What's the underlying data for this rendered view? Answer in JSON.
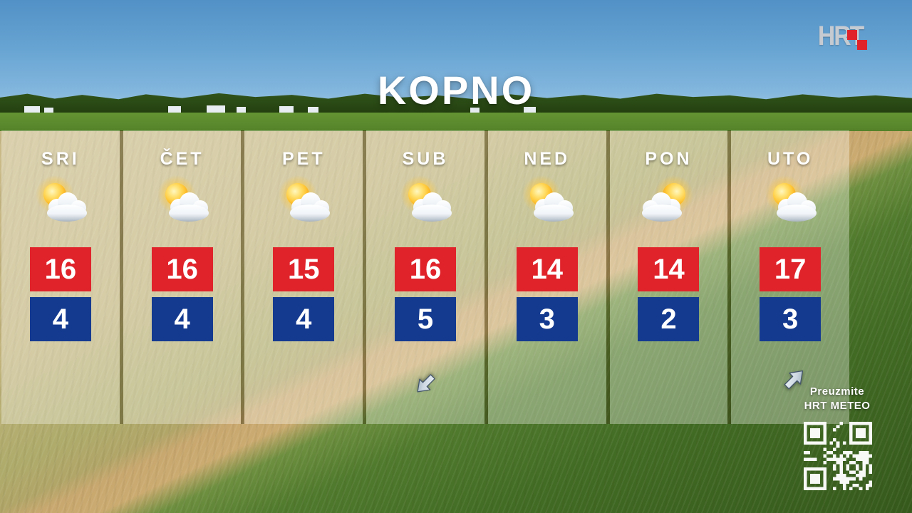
{
  "title": "KOPNO",
  "logo": {
    "text": "HRT",
    "accent_color": "#e0232b"
  },
  "days": [
    {
      "label": "SRI",
      "high": "16",
      "low": "4",
      "icon": "partly-cloudy",
      "wind_arrow": null
    },
    {
      "label": "ČET",
      "high": "16",
      "low": "4",
      "icon": "partly-cloudy",
      "wind_arrow": null
    },
    {
      "label": "PET",
      "high": "15",
      "low": "4",
      "icon": "partly-cloudy",
      "wind_arrow": null
    },
    {
      "label": "SUB",
      "high": "16",
      "low": "5",
      "icon": "partly-cloudy",
      "wind_arrow": "southwest"
    },
    {
      "label": "NED",
      "high": "14",
      "low": "3",
      "icon": "partly-cloudy",
      "wind_arrow": null
    },
    {
      "label": "PON",
      "high": "14",
      "low": "2",
      "icon": "partly-cloudy-mirrored",
      "wind_arrow": null
    },
    {
      "label": "UTO",
      "high": "17",
      "low": "3",
      "icon": "partly-cloudy",
      "wind_arrow": null
    }
  ],
  "promo": {
    "arrow_icon": "northeast-arrow",
    "line1": "Preuzmite",
    "line2": "HRT METEO",
    "qr_icon": "qr-code"
  },
  "colors": {
    "high_bg": "#e0232b",
    "low_bg": "#143a90",
    "panel_tint": "rgba(252,252,246,0.34)",
    "sky_top": "#5291c6",
    "field_green": "#35591c"
  }
}
